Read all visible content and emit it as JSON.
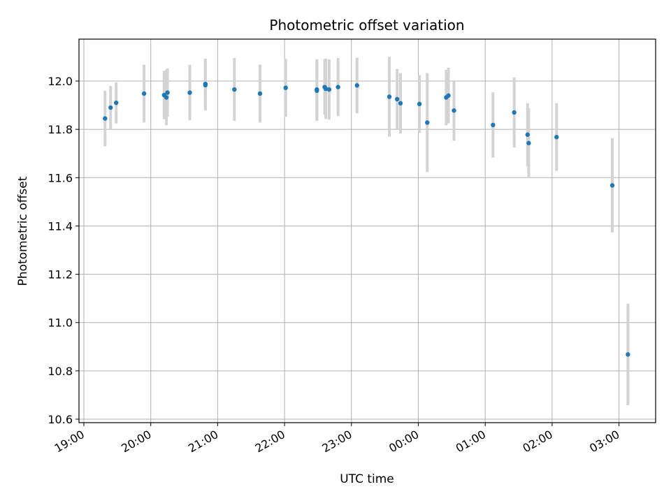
{
  "chart_data": {
    "type": "scatter",
    "title": "Photometric offset variation",
    "xlabel": "UTC time",
    "ylabel": "Photometric offset",
    "grid": true,
    "colors": {
      "points": "#1f77b4",
      "errorbars": "#d3d3d3",
      "grid": "#b0b0b0"
    },
    "xlim": [
      "19:00",
      "03:30"
    ],
    "ylim": [
      10.59,
      12.17
    ],
    "x_ticks": [
      "19:00",
      "20:00",
      "21:00",
      "22:00",
      "23:00",
      "00:00",
      "01:00",
      "02:00",
      "03:00"
    ],
    "y_ticks": [
      "10.6",
      "10.8",
      "11.0",
      "11.2",
      "11.4",
      "11.6",
      "11.8",
      "12.0"
    ],
    "points": [
      {
        "x": "19:19",
        "y": 11.845,
        "err": 0.115
      },
      {
        "x": "19:24",
        "y": 11.89,
        "err": 0.09
      },
      {
        "x": "19:29",
        "y": 11.91,
        "err": 0.085
      },
      {
        "x": "19:54",
        "y": 11.948,
        "err": 0.12
      },
      {
        "x": "20:12",
        "y": 11.942,
        "err": 0.1
      },
      {
        "x": "20:14",
        "y": 11.932,
        "err": 0.115
      },
      {
        "x": "20:15",
        "y": 11.952,
        "err": 0.1
      },
      {
        "x": "20:35",
        "y": 11.952,
        "err": 0.115
      },
      {
        "x": "20:49",
        "y": 11.988,
        "err": 0.105
      },
      {
        "x": "20:49",
        "y": 11.983,
        "err": 0.105
      },
      {
        "x": "21:15",
        "y": 11.965,
        "err": 0.13
      },
      {
        "x": "21:38",
        "y": 11.948,
        "err": 0.12
      },
      {
        "x": "22:01",
        "y": 11.972,
        "err": 0.12
      },
      {
        "x": "22:29",
        "y": 11.965,
        "err": 0.125
      },
      {
        "x": "22:29",
        "y": 11.96,
        "err": 0.125
      },
      {
        "x": "22:36",
        "y": 11.975,
        "err": 0.115
      },
      {
        "x": "22:37",
        "y": 11.968,
        "err": 0.125
      },
      {
        "x": "22:40",
        "y": 11.965,
        "err": 0.125
      },
      {
        "x": "22:48",
        "y": 11.975,
        "err": 0.12
      },
      {
        "x": "23:05",
        "y": 11.982,
        "err": 0.115
      },
      {
        "x": "23:34",
        "y": 11.935,
        "err": 0.165
      },
      {
        "x": "23:41",
        "y": 11.925,
        "err": 0.125
      },
      {
        "x": "23:44",
        "y": 11.908,
        "err": 0.125
      },
      {
        "x": "00:01",
        "y": 11.905,
        "err": 0.12
      },
      {
        "x": "00:08",
        "y": 11.828,
        "err": 0.205
      },
      {
        "x": "00:25",
        "y": 11.932,
        "err": 0.115
      },
      {
        "x": "00:27",
        "y": 11.94,
        "err": 0.115
      },
      {
        "x": "00:32",
        "y": 11.878,
        "err": 0.125
      },
      {
        "x": "01:07",
        "y": 11.818,
        "err": 0.135
      },
      {
        "x": "01:26",
        "y": 11.87,
        "err": 0.145
      },
      {
        "x": "01:38",
        "y": 11.778,
        "err": 0.13
      },
      {
        "x": "01:39",
        "y": 11.743,
        "err": 0.145
      },
      {
        "x": "02:04",
        "y": 11.768,
        "err": 0.14
      },
      {
        "x": "02:54",
        "y": 11.568,
        "err": 0.195
      },
      {
        "x": "03:08",
        "y": 10.868,
        "err": 0.21
      }
    ]
  }
}
